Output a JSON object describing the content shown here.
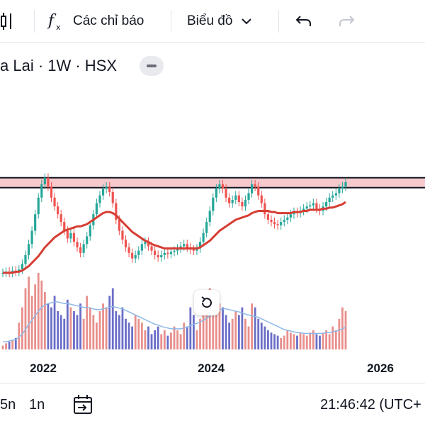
{
  "toolbar": {
    "indicators_label": "Các chỉ báo",
    "chart_type_label": "Biểu đồ"
  },
  "symbol": {
    "title": "a Lai · 1W · HSX"
  },
  "bottombar": {
    "range_5n": "5n",
    "range_1n": "1n",
    "clock": "21:46:42 (UTC+"
  },
  "colors": {
    "up": "#26a69a",
    "down": "#ef5350",
    "ma": "#d63d33",
    "volume_ma": "#8fb8e8",
    "zone_fill": "#f7c9cc",
    "zone_border": "#131722"
  },
  "chart_data": {
    "type": "candlestick",
    "x_ticks": [
      "2022",
      "2024",
      "2026"
    ],
    "resistance_zone": {
      "low": 0.79,
      "high": 0.88
    },
    "price_series": [
      0.02,
      0.03,
      0.02,
      0.04,
      0.03,
      0.05,
      0.1,
      0.18,
      0.28,
      0.4,
      0.55,
      0.7,
      0.82,
      0.88,
      0.8,
      0.7,
      0.62,
      0.55,
      0.48,
      0.4,
      0.33,
      0.38,
      0.3,
      0.25,
      0.2,
      0.28,
      0.35,
      0.45,
      0.55,
      0.65,
      0.72,
      0.78,
      0.8,
      0.75,
      0.65,
      0.5,
      0.4,
      0.32,
      0.25,
      0.2,
      0.15,
      0.18,
      0.22,
      0.28,
      0.3,
      0.26,
      0.22,
      0.18,
      0.16,
      0.18,
      0.2,
      0.19,
      0.21,
      0.22,
      0.24,
      0.26,
      0.28,
      0.25,
      0.23,
      0.22,
      0.24,
      0.3,
      0.38,
      0.48,
      0.58,
      0.7,
      0.78,
      0.82,
      0.78,
      0.7,
      0.65,
      0.68,
      0.72,
      0.66,
      0.62,
      0.68,
      0.74,
      0.82,
      0.8,
      0.72,
      0.65,
      0.55,
      0.5,
      0.48,
      0.46,
      0.45,
      0.48,
      0.5,
      0.52,
      0.55,
      0.57,
      0.56,
      0.58,
      0.6,
      0.62,
      0.63,
      0.65,
      0.6,
      0.58,
      0.62,
      0.66,
      0.7,
      0.72,
      0.74,
      0.78,
      0.8,
      0.84
    ],
    "ma_series": [
      0.02,
      0.02,
      0.02,
      0.02,
      0.03,
      0.03,
      0.04,
      0.06,
      0.08,
      0.11,
      0.14,
      0.17,
      0.21,
      0.25,
      0.28,
      0.31,
      0.34,
      0.36,
      0.38,
      0.4,
      0.41,
      0.42,
      0.43,
      0.44,
      0.44,
      0.45,
      0.46,
      0.48,
      0.5,
      0.52,
      0.54,
      0.56,
      0.57,
      0.57,
      0.56,
      0.54,
      0.51,
      0.48,
      0.45,
      0.42,
      0.39,
      0.37,
      0.35,
      0.33,
      0.31,
      0.3,
      0.28,
      0.27,
      0.26,
      0.25,
      0.24,
      0.24,
      0.24,
      0.24,
      0.24,
      0.24,
      0.24,
      0.24,
      0.24,
      0.24,
      0.24,
      0.25,
      0.27,
      0.29,
      0.31,
      0.34,
      0.37,
      0.4,
      0.42,
      0.44,
      0.46,
      0.48,
      0.5,
      0.51,
      0.52,
      0.53,
      0.54,
      0.56,
      0.57,
      0.58,
      0.58,
      0.58,
      0.58,
      0.57,
      0.57,
      0.56,
      0.56,
      0.56,
      0.56,
      0.56,
      0.57,
      0.57,
      0.57,
      0.58,
      0.58,
      0.59,
      0.59,
      0.59,
      0.59,
      0.6,
      0.6,
      0.61,
      0.61,
      0.62,
      0.63,
      0.64,
      0.66
    ],
    "volume_series": [
      0.05,
      0.08,
      0.1,
      0.12,
      0.15,
      0.35,
      0.55,
      0.8,
      0.95,
      0.7,
      0.85,
      1.0,
      0.9,
      0.75,
      0.6,
      0.55,
      0.7,
      0.5,
      0.45,
      0.4,
      0.65,
      0.55,
      0.5,
      0.45,
      0.6,
      0.4,
      0.7,
      0.55,
      0.45,
      0.35,
      0.5,
      0.6,
      0.55,
      0.7,
      0.8,
      0.5,
      0.45,
      0.55,
      0.4,
      0.35,
      0.3,
      0.45,
      0.4,
      0.35,
      0.25,
      0.3,
      0.2,
      0.25,
      0.3,
      0.2,
      0.25,
      0.18,
      0.22,
      0.3,
      0.25,
      0.2,
      0.35,
      0.3,
      0.55,
      0.45,
      0.25,
      0.4,
      0.55,
      0.65,
      0.8,
      0.7,
      0.75,
      0.6,
      0.55,
      0.45,
      0.35,
      0.4,
      0.5,
      0.45,
      0.55,
      0.4,
      0.3,
      0.6,
      0.55,
      0.4,
      0.35,
      0.3,
      0.25,
      0.22,
      0.2,
      0.18,
      0.15,
      0.18,
      0.25,
      0.22,
      0.2,
      0.18,
      0.22,
      0.2,
      0.18,
      0.22,
      0.25,
      0.2,
      0.18,
      0.22,
      0.25,
      0.2,
      0.3,
      0.25,
      0.4,
      0.55,
      0.5
    ],
    "volume_ma_series": [
      0.1,
      0.1,
      0.11,
      0.12,
      0.13,
      0.16,
      0.2,
      0.26,
      0.33,
      0.38,
      0.44,
      0.5,
      0.55,
      0.58,
      0.6,
      0.61,
      0.62,
      0.62,
      0.61,
      0.6,
      0.6,
      0.59,
      0.58,
      0.57,
      0.56,
      0.55,
      0.55,
      0.54,
      0.53,
      0.52,
      0.52,
      0.53,
      0.54,
      0.55,
      0.56,
      0.55,
      0.54,
      0.53,
      0.51,
      0.49,
      0.47,
      0.45,
      0.43,
      0.41,
      0.39,
      0.37,
      0.35,
      0.33,
      0.32,
      0.3,
      0.29,
      0.28,
      0.27,
      0.27,
      0.27,
      0.27,
      0.28,
      0.29,
      0.31,
      0.33,
      0.34,
      0.36,
      0.38,
      0.41,
      0.44,
      0.47,
      0.5,
      0.52,
      0.53,
      0.53,
      0.52,
      0.51,
      0.5,
      0.49,
      0.48,
      0.46,
      0.45,
      0.44,
      0.43,
      0.42,
      0.4,
      0.38,
      0.36,
      0.34,
      0.32,
      0.3,
      0.28,
      0.26,
      0.25,
      0.24,
      0.23,
      0.22,
      0.22,
      0.21,
      0.21,
      0.21,
      0.21,
      0.21,
      0.21,
      0.21,
      0.22,
      0.22,
      0.23,
      0.24,
      0.25,
      0.27,
      0.29
    ]
  }
}
